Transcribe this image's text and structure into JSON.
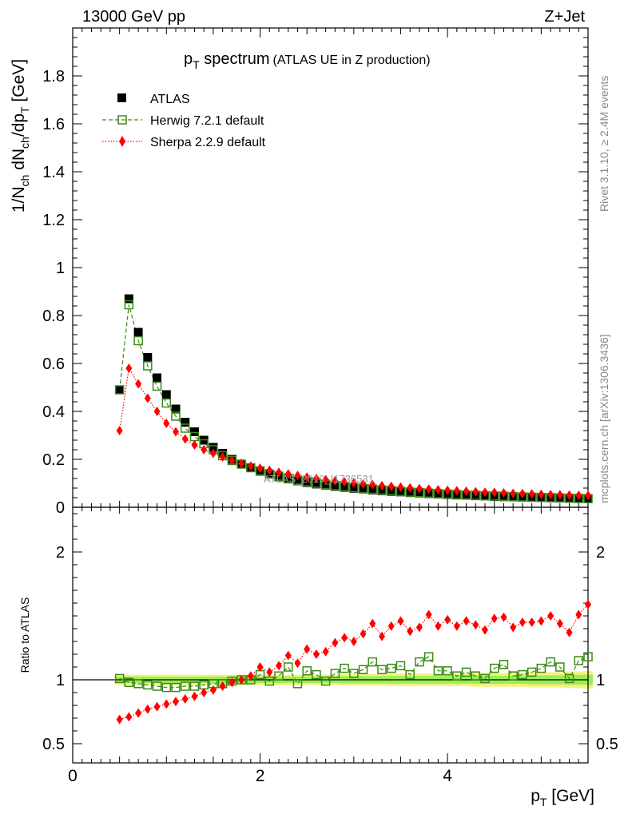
{
  "header": {
    "left": "13000 GeV pp",
    "right": "Z+Jet"
  },
  "title": {
    "main_p": "p",
    "main_sub": "T",
    "main_rest": " spectrum",
    "paren": "(ATLAS UE in Z production)"
  },
  "side_text": {
    "rivet": "Rivet 3.1.10, ≥ 2.4M events",
    "mcplots": "mcplots.cern.ch [arXiv:1306.3436]"
  },
  "watermark": "ATLAS_2019_I1736531",
  "legend": {
    "atlas": "ATLAS",
    "herwig": "Herwig 7.2.1 default",
    "sherpa": "Sherpa 2.2.9 default"
  },
  "axes": {
    "ylabel_main": "1/N_ch dN_ch/dp_T [GeV]",
    "ylabel_ratio": "Ratio to ATLAS",
    "xlabel": "p_T [GeV]"
  },
  "colors": {
    "atlas": "#000000",
    "herwig": "#3a8a18",
    "sherpa": "#ff0000",
    "band_inner": "#99ee55",
    "band_outer": "#f8f080"
  },
  "chart_data": {
    "type": "scatter",
    "x_label": "p_T [GeV]",
    "x_range": [
      0,
      5.5
    ],
    "main_y_range": [
      0,
      2.0
    ],
    "main_y_ticks": [
      "0",
      "0.2",
      "0.4",
      "0.6",
      "0.8",
      "1",
      "1.2",
      "1.4",
      "1.6",
      "1.8"
    ],
    "ratio_y_range": [
      0.35,
      2.35
    ],
    "ratio_y_ticks": [
      "0.5",
      "1",
      "2"
    ],
    "x_ticks": [
      "0",
      "2",
      "4"
    ],
    "x": [
      0.5,
      0.6,
      0.7,
      0.8,
      0.9,
      1.0,
      1.1,
      1.2,
      1.3,
      1.4,
      1.5,
      1.6,
      1.7,
      1.8,
      1.9,
      2.0,
      2.1,
      2.2,
      2.3,
      2.4,
      2.5,
      2.6,
      2.7,
      2.8,
      2.9,
      3.0,
      3.1,
      3.2,
      3.3,
      3.4,
      3.5,
      3.6,
      3.7,
      3.8,
      3.9,
      4.0,
      4.1,
      4.2,
      4.3,
      4.4,
      4.5,
      4.6,
      4.7,
      4.8,
      4.9,
      5.0,
      5.1,
      5.2,
      5.3,
      5.4,
      5.5
    ],
    "series": [
      {
        "name": "ATLAS",
        "values": [
          0.49,
          0.87,
          0.73,
          0.625,
          0.54,
          0.47,
          0.41,
          0.355,
          0.315,
          0.28,
          0.25,
          0.225,
          0.2,
          0.18,
          0.165,
          0.15,
          0.138,
          0.127,
          0.118,
          0.11,
          0.103,
          0.097,
          0.092,
          0.087,
          0.083,
          0.079,
          0.076,
          0.072,
          0.069,
          0.066,
          0.064,
          0.061,
          0.059,
          0.057,
          0.055,
          0.053,
          0.051,
          0.05,
          0.048,
          0.047,
          0.045,
          0.044,
          0.043,
          0.042,
          0.041,
          0.04,
          0.039,
          0.038,
          0.037,
          0.036,
          0.035
        ]
      },
      {
        "name": "Herwig 7.2.1 default",
        "values": [
          0.49,
          0.845,
          0.695,
          0.59,
          0.505,
          0.435,
          0.38,
          0.33,
          0.295,
          0.265,
          0.24,
          0.215,
          0.195,
          0.18,
          0.165,
          0.152,
          0.139,
          0.13,
          0.12,
          0.112,
          0.106,
          0.1,
          0.094,
          0.09,
          0.086,
          0.082,
          0.078,
          0.075,
          0.072,
          0.069,
          0.066,
          0.063,
          0.061,
          0.059,
          0.057,
          0.055,
          0.053,
          0.051,
          0.05,
          0.048,
          0.047,
          0.046,
          0.044,
          0.043,
          0.042,
          0.041,
          0.04,
          0.039,
          0.038,
          0.037,
          0.036
        ]
      },
      {
        "name": "Sherpa 2.2.9 default",
        "values": [
          0.32,
          0.58,
          0.515,
          0.455,
          0.4,
          0.35,
          0.315,
          0.285,
          0.26,
          0.24,
          0.225,
          0.21,
          0.195,
          0.183,
          0.172,
          0.163,
          0.154,
          0.146,
          0.139,
          0.133,
          0.126,
          0.12,
          0.115,
          0.11,
          0.106,
          0.101,
          0.097,
          0.094,
          0.09,
          0.087,
          0.084,
          0.081,
          0.078,
          0.076,
          0.073,
          0.071,
          0.069,
          0.067,
          0.065,
          0.063,
          0.062,
          0.06,
          0.058,
          0.057,
          0.056,
          0.054,
          0.053,
          0.052,
          0.051,
          0.05,
          0.049
        ]
      }
    ],
    "ratio_series": [
      {
        "name": "Herwig 7.2.1 default",
        "values": [
          1.01,
          0.98,
          0.97,
          0.96,
          0.95,
          0.94,
          0.94,
          0.95,
          0.95,
          0.96,
          0.97,
          0.97,
          0.99,
          1.0,
          1.0,
          1.04,
          0.99,
          1.03,
          1.1,
          0.97,
          1.07,
          1.04,
          0.99,
          1.05,
          1.09,
          1.05,
          1.08,
          1.14,
          1.08,
          1.09,
          1.11,
          1.04,
          1.14,
          1.18,
          1.07,
          1.07,
          1.03,
          1.06,
          1.03,
          1.01,
          1.09,
          1.12,
          1.03,
          1.04,
          1.06,
          1.09,
          1.14,
          1.1,
          1.01,
          1.15,
          1.18
        ]
      },
      {
        "name": "Sherpa 2.2.9 default",
        "values": [
          0.69,
          0.71,
          0.74,
          0.77,
          0.79,
          0.81,
          0.83,
          0.85,
          0.87,
          0.9,
          0.92,
          0.95,
          0.98,
          1.0,
          1.03,
          1.1,
          1.06,
          1.11,
          1.19,
          1.13,
          1.24,
          1.2,
          1.22,
          1.29,
          1.33,
          1.3,
          1.36,
          1.44,
          1.34,
          1.42,
          1.46,
          1.38,
          1.41,
          1.51,
          1.42,
          1.47,
          1.42,
          1.46,
          1.43,
          1.39,
          1.48,
          1.49,
          1.41,
          1.45,
          1.45,
          1.46,
          1.5,
          1.44,
          1.37,
          1.51,
          1.59
        ]
      }
    ],
    "band_outer_halfwidth": [
      0.04,
      0.04,
      0.04,
      0.04,
      0.04,
      0.04,
      0.04,
      0.04,
      0.04,
      0.04,
      0.04,
      0.04,
      0.04,
      0.04,
      0.04,
      0.04,
      0.04,
      0.04,
      0.04,
      0.04,
      0.04,
      0.04,
      0.04,
      0.04,
      0.045,
      0.045,
      0.045,
      0.045,
      0.045,
      0.05,
      0.05,
      0.05,
      0.05,
      0.05,
      0.05,
      0.05,
      0.05,
      0.05,
      0.055,
      0.055,
      0.055,
      0.055,
      0.055,
      0.055,
      0.06,
      0.06,
      0.06,
      0.06,
      0.065,
      0.065,
      0.07
    ],
    "band_inner_halfwidth": [
      0.025,
      0.025,
      0.025,
      0.025,
      0.025,
      0.025,
      0.025,
      0.025,
      0.025,
      0.025,
      0.025,
      0.025,
      0.025,
      0.025,
      0.025,
      0.025,
      0.025,
      0.025,
      0.025,
      0.025,
      0.025,
      0.025,
      0.025,
      0.025,
      0.028,
      0.028,
      0.028,
      0.028,
      0.028,
      0.03,
      0.03,
      0.03,
      0.03,
      0.03,
      0.03,
      0.03,
      0.03,
      0.03,
      0.032,
      0.032,
      0.032,
      0.032,
      0.032,
      0.032,
      0.035,
      0.035,
      0.035,
      0.035,
      0.038,
      0.038,
      0.04
    ],
    "reference_line": 1
  }
}
